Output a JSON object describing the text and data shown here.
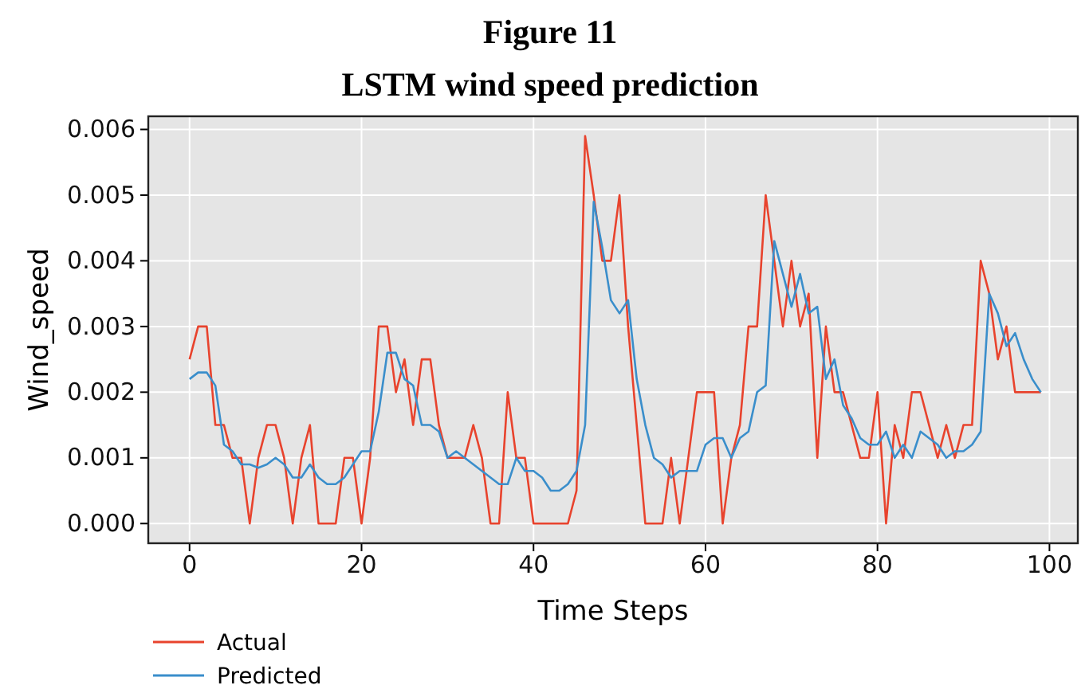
{
  "chart_data": {
    "type": "line",
    "title": "Figure 11",
    "subtitle": "LSTM wind speed prediction",
    "xlabel": "Time Steps",
    "ylabel": "Wind_speed",
    "x": [
      0,
      1,
      2,
      3,
      4,
      5,
      6,
      7,
      8,
      9,
      10,
      11,
      12,
      13,
      14,
      15,
      16,
      17,
      18,
      19,
      20,
      21,
      22,
      23,
      24,
      25,
      26,
      27,
      28,
      29,
      30,
      31,
      32,
      33,
      34,
      35,
      36,
      37,
      38,
      39,
      40,
      41,
      42,
      43,
      44,
      45,
      46,
      47,
      48,
      49,
      50,
      51,
      52,
      53,
      54,
      55,
      56,
      57,
      58,
      59,
      60,
      61,
      62,
      63,
      64,
      65,
      66,
      67,
      68,
      69,
      70,
      71,
      72,
      73,
      74,
      75,
      76,
      77,
      78,
      79,
      80,
      81,
      82,
      83,
      84,
      85,
      86,
      87,
      88,
      89,
      90,
      91,
      92,
      93,
      94,
      95,
      96,
      97,
      98,
      99
    ],
    "series": [
      {
        "name": "Actual",
        "color": "#e8432d",
        "values": [
          0.0025,
          0.003,
          0.003,
          0.0015,
          0.0015,
          0.001,
          0.001,
          0,
          0.001,
          0.0015,
          0.0015,
          0.001,
          0,
          0.001,
          0.0015,
          0,
          0,
          0,
          0.001,
          0.001,
          0,
          0.001,
          0.003,
          0.003,
          0.002,
          0.0025,
          0.0015,
          0.0025,
          0.0025,
          0.0015,
          0.001,
          0.001,
          0.001,
          0.0015,
          0.001,
          0,
          0,
          0.002,
          0.001,
          0.001,
          0,
          0,
          0,
          0,
          0,
          0.0005,
          0.0059,
          0.005,
          0.004,
          0.004,
          0.005,
          0.003,
          0.0015,
          0,
          0,
          0,
          0.001,
          0,
          0.001,
          0.002,
          0.002,
          0.002,
          0,
          0.001,
          0.0015,
          0.003,
          0.003,
          0.005,
          0.004,
          0.003,
          0.004,
          0.003,
          0.0035,
          0.001,
          0.003,
          0.002,
          0.002,
          0.0015,
          0.001,
          0.001,
          0.002,
          0,
          0.0015,
          0.001,
          0.002,
          0.002,
          0.0015,
          0.001,
          0.0015,
          0.001,
          0.0015,
          0.0015,
          0.004,
          0.0035,
          0.0025,
          0.003,
          0.002,
          0.002,
          0.002,
          0.002
        ]
      },
      {
        "name": "Predicted",
        "color": "#3a8ecb",
        "values": [
          0.0022,
          0.0023,
          0.0023,
          0.0021,
          0.0012,
          0.0011,
          0.0009,
          0.0009,
          0.00085,
          0.0009,
          0.001,
          0.0009,
          0.0007,
          0.0007,
          0.0009,
          0.0007,
          0.0006,
          0.0006,
          0.0007,
          0.0009,
          0.0011,
          0.0011,
          0.0017,
          0.0026,
          0.0026,
          0.0022,
          0.0021,
          0.0015,
          0.0015,
          0.0014,
          0.001,
          0.0011,
          0.001,
          0.0009,
          0.0008,
          0.0007,
          0.0006,
          0.0006,
          0.001,
          0.0008,
          0.0008,
          0.0007,
          0.0005,
          0.0005,
          0.0006,
          0.0008,
          0.0015,
          0.0049,
          0.0042,
          0.0034,
          0.0032,
          0.0034,
          0.0022,
          0.0015,
          0.001,
          0.0009,
          0.0007,
          0.0008,
          0.0008,
          0.0008,
          0.0012,
          0.0013,
          0.0013,
          0.001,
          0.0013,
          0.0014,
          0.002,
          0.0021,
          0.0043,
          0.0038,
          0.0033,
          0.0038,
          0.0032,
          0.0033,
          0.0022,
          0.0025,
          0.0018,
          0.0016,
          0.0013,
          0.0012,
          0.0012,
          0.0014,
          0.001,
          0.0012,
          0.001,
          0.0014,
          0.0013,
          0.0012,
          0.001,
          0.0011,
          0.0011,
          0.0012,
          0.0014,
          0.0035,
          0.0032,
          0.0027,
          0.0029,
          0.0025,
          0.0022,
          0.002
        ]
      }
    ],
    "xlim": [
      -4.8,
      103.3
    ],
    "xticks": [
      0,
      20,
      40,
      60,
      80,
      100
    ],
    "ylim": [
      -0.0003,
      0.0062
    ],
    "yticks": [
      {
        "value": 0,
        "label": "0.000"
      },
      {
        "value": 0.001,
        "label": "0.001"
      },
      {
        "value": 0.002,
        "label": "0.002"
      },
      {
        "value": 0.003,
        "label": "0.003"
      },
      {
        "value": 0.004,
        "label": "0.004"
      },
      {
        "value": 0.005,
        "label": "0.005"
      },
      {
        "value": 0.006,
        "label": "0.006"
      }
    ],
    "grid": true,
    "legend": "bottom left",
    "marker": "none",
    "line_style": "solid"
  }
}
